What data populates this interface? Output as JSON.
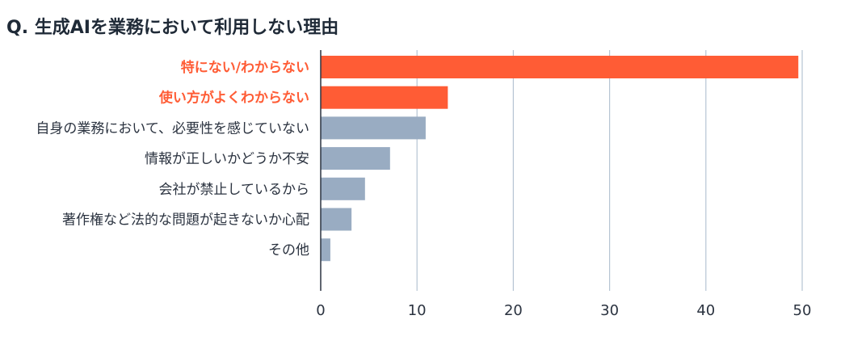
{
  "chart_data": {
    "type": "bar",
    "orientation": "horizontal",
    "title": "Q. 生成AIを業務において利用しない理由",
    "xlabel": "",
    "ylabel": "",
    "categories": [
      "特にない/わからない",
      "使い方がよくわからない",
      "自身の業務において、必要性を感じていない",
      "情報が正しいかどうか不安",
      "会社が禁止しているから",
      "著作権など法的な問題が起きないか心配",
      "その他"
    ],
    "values": [
      49.6,
      13.2,
      10.9,
      7.2,
      4.6,
      3.2,
      1.0
    ],
    "highlighted": [
      true,
      true,
      false,
      false,
      false,
      false,
      false
    ],
    "xlim": [
      0,
      50
    ],
    "xticks": [
      0,
      10,
      20,
      30,
      40,
      50
    ],
    "grid": "vertical",
    "legend": "none",
    "colors": {
      "highlight": "#ff5c35",
      "default": "#99acc2",
      "grid": "#b6c4d3",
      "axis": "#2b3340",
      "highlight_label": "#ff5c35",
      "default_label": "#2b3340"
    }
  }
}
